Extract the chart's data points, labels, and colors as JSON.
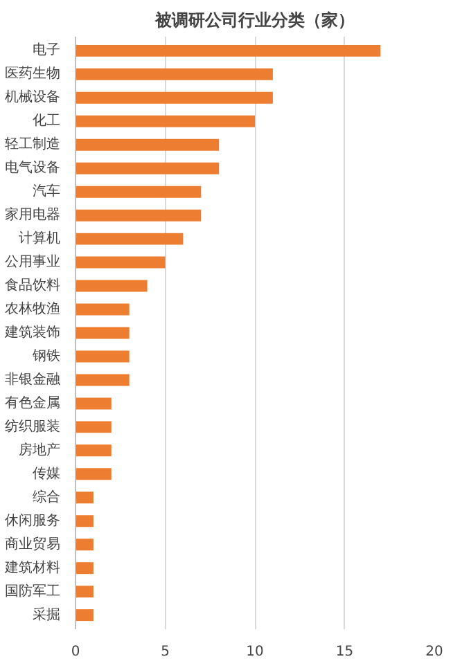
{
  "chart_data": {
    "type": "bar",
    "orientation": "horizontal",
    "title": "被调研公司行业分类（家）",
    "categories": [
      "电子",
      "医药生物",
      "机械设备",
      "化工",
      "轻工制造",
      "电气设备",
      "汽车",
      "家用电器",
      "计算机",
      "公用事业",
      "食品饮料",
      "农林牧渔",
      "建筑装饰",
      "钢铁",
      "非银金融",
      "有色金属",
      "纺织服装",
      "房地产",
      "传媒",
      "综合",
      "休闲服务",
      "商业贸易",
      "建筑材料",
      "国防军工",
      "采掘"
    ],
    "values": [
      17,
      11,
      11,
      10,
      8,
      8,
      7,
      7,
      6,
      5,
      4,
      3,
      3,
      3,
      3,
      2,
      2,
      2,
      2,
      1,
      1,
      1,
      1,
      1,
      1
    ],
    "color": "#ed7d31",
    "xlim": [
      0,
      20
    ],
    "xticks": [
      0,
      5,
      10,
      15,
      20
    ],
    "grid": "x"
  }
}
